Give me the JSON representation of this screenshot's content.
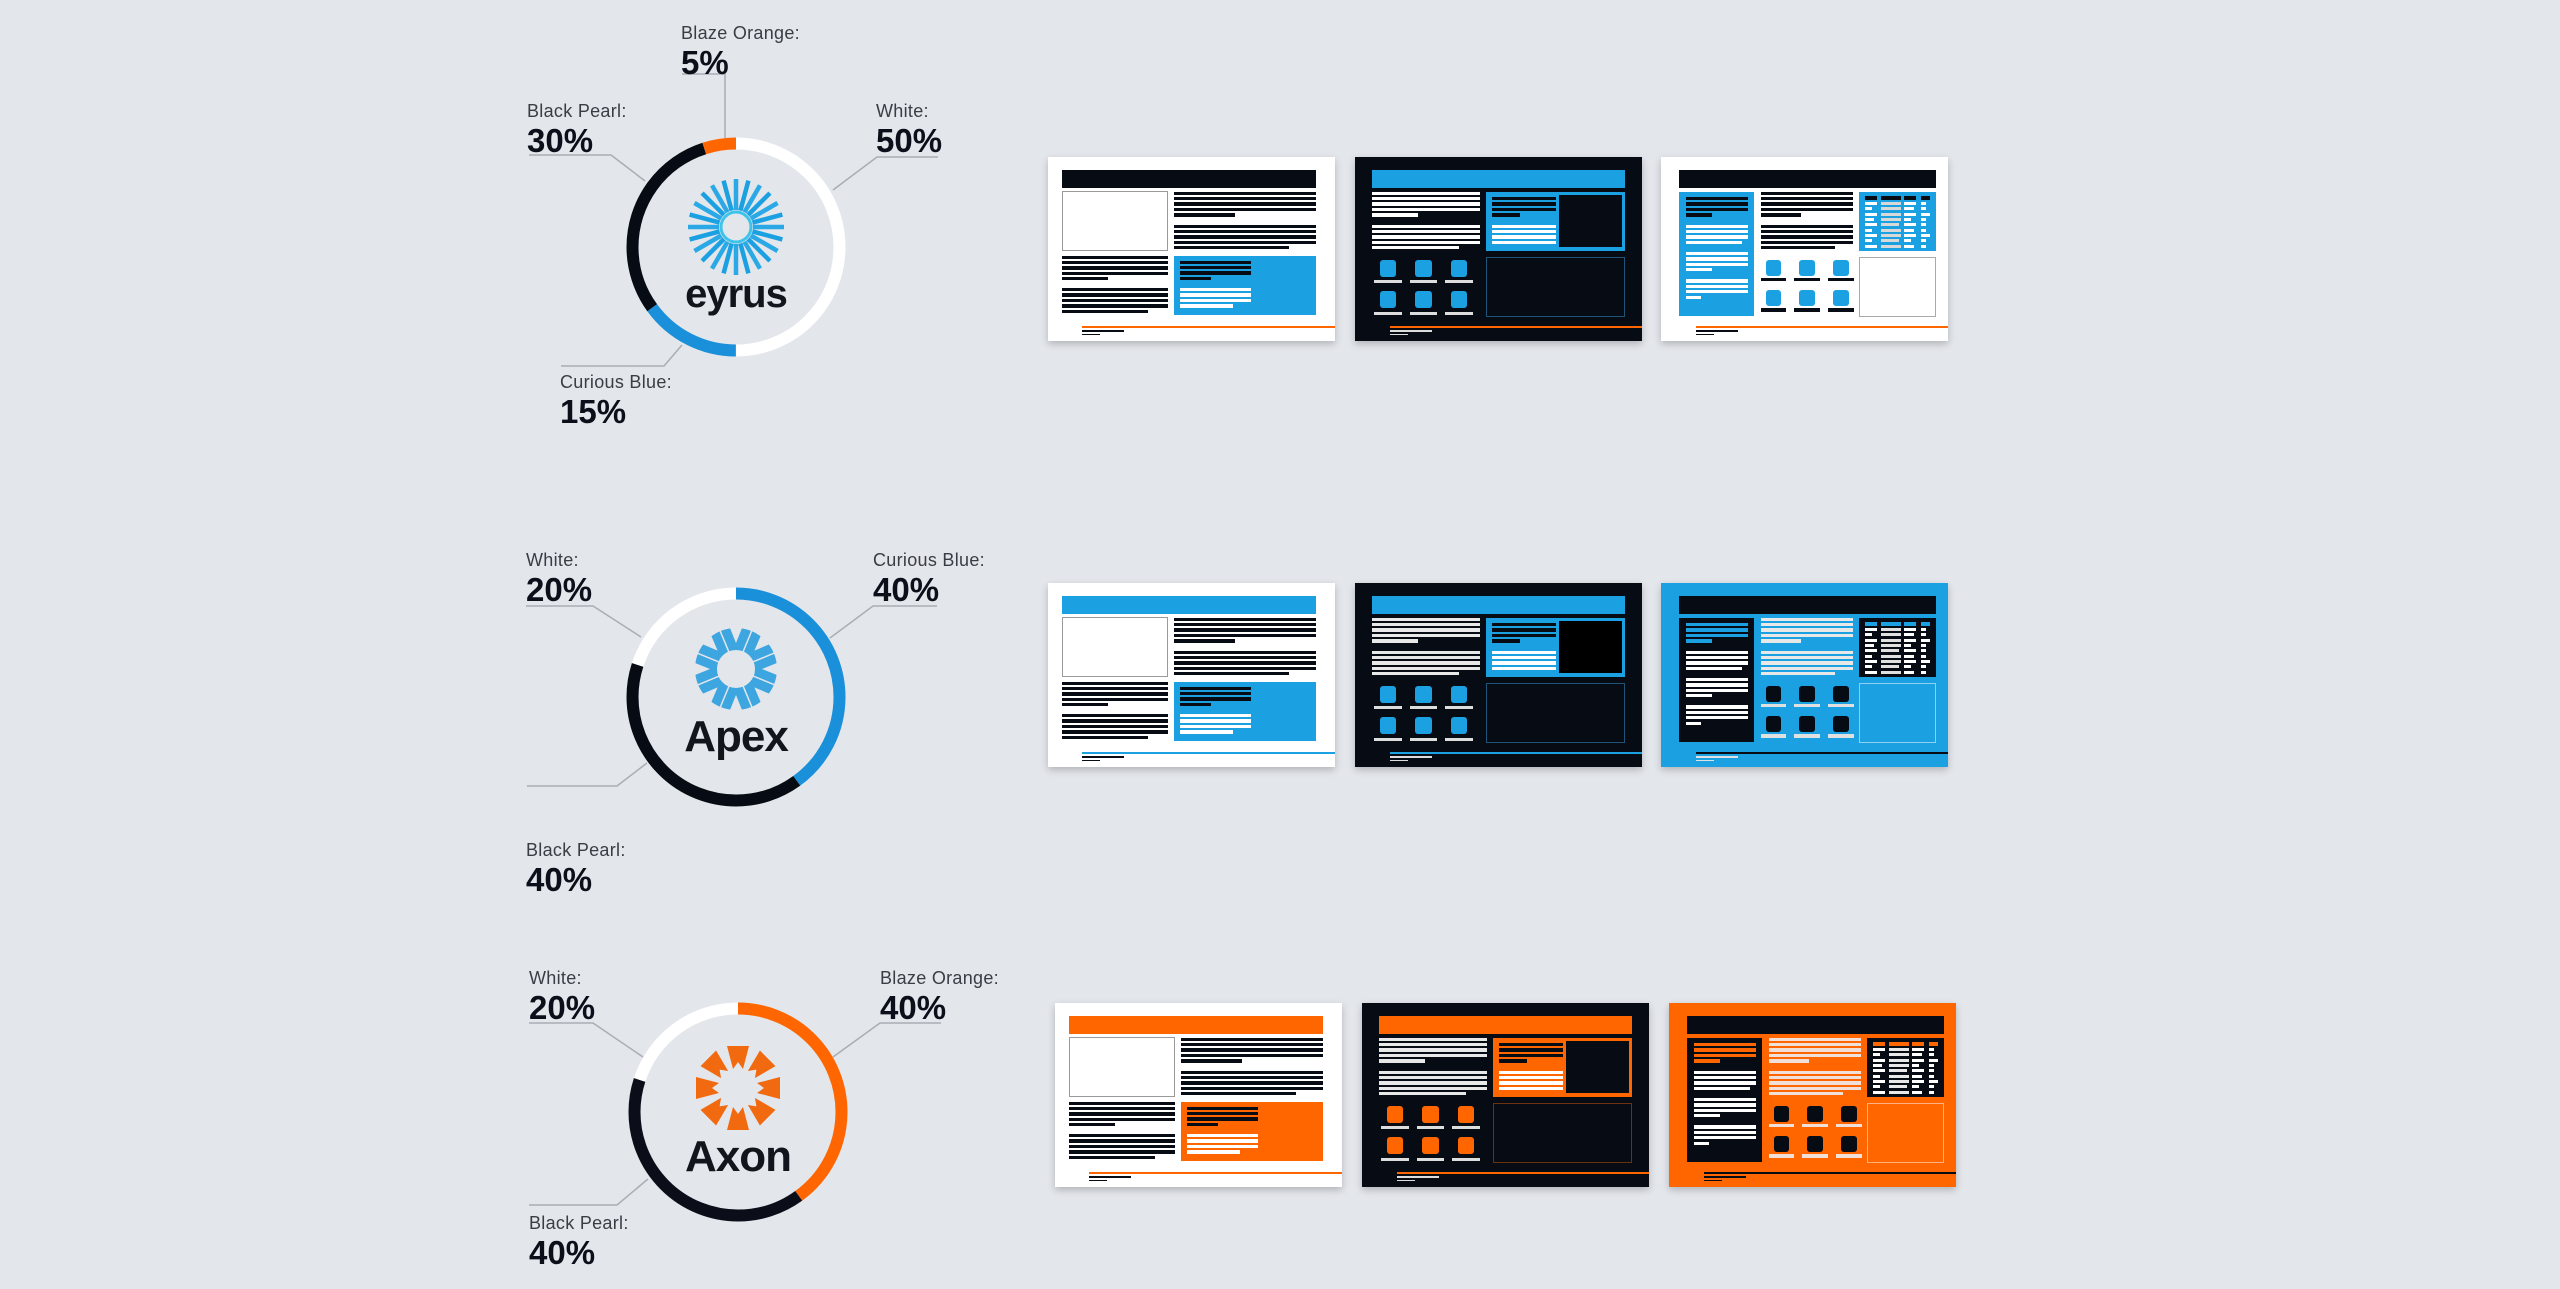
{
  "palette": {
    "black_pearl": "#060B14",
    "curious_blue": "#1BA1E2",
    "blaze_orange": "#FF6600",
    "white": "#FFFFFF",
    "background": "#E3E6EB"
  },
  "brands": [
    {
      "logo_text": "eyrus",
      "logo_icon": "sunburst-icon",
      "logo_color": "#1BA1E2",
      "segments": [
        {
          "label": "White:",
          "value": "50%",
          "percent": 50,
          "color": "#FFFFFF"
        },
        {
          "label": "Curious Blue:",
          "value": "15%",
          "percent": 15,
          "color": "#1B90DA"
        },
        {
          "label": "Black Pearl:",
          "value": "30%",
          "percent": 30,
          "color": "#060B14"
        },
        {
          "label": "Blaze Orange:",
          "value": "5%",
          "percent": 5,
          "color": "#FF6600"
        }
      ],
      "mockups": [
        {
          "variant": "A",
          "bg": "#FFFFFF",
          "header": "#060B14",
          "imgBox": "#FFFFFF",
          "imgBorder": "#9a9a9a",
          "lines": "#060B14",
          "accent": "#1BA1E2",
          "boxTop": "#060B14",
          "boxBottom": "#FFFFFF",
          "footer": "#FF6600",
          "footText": "#060B14"
        },
        {
          "variant": "B",
          "bg": "#060B14",
          "header": "#1BA1E2",
          "lines": "#FFFFFF",
          "accent": "#1BA1E2",
          "innerTop": "#060B14",
          "innerBottom": "#FFFFFF",
          "inner": "#060B14",
          "icon": "#1BA1E2",
          "label": "#DDDDDD",
          "box": "#060B14",
          "boxBorder": "#1d5478",
          "footer": "#FF6600",
          "footText": "#DDDDDD"
        },
        {
          "variant": "C",
          "bg": "#FFFFFF",
          "header": "#060B14",
          "col": "#1BA1E2",
          "colTop": "#060B14",
          "colLines": "#FFFFFF",
          "mid": "#060B14",
          "icon": "#1BA1E2",
          "label": "#060B14",
          "table": "#1BA1E2",
          "tableHead": "#060B14",
          "tableCells": "#FFFFFF",
          "tableCellsAlt": "#D8D8D8",
          "box": "#FFFFFF",
          "boxBorder": "#AAAAAA",
          "footer": "#FF6600",
          "footText": "#060B14"
        }
      ]
    },
    {
      "logo_text": "Apex",
      "logo_icon": "gear-burst-icon",
      "logo_color": "#3DA5E0",
      "segments": [
        {
          "label": "Curious Blue:",
          "value": "40%",
          "percent": 40,
          "color": "#1B90DA"
        },
        {
          "label": "Black Pearl:",
          "value": "40%",
          "percent": 40,
          "color": "#060B14"
        },
        {
          "label": "White:",
          "value": "20%",
          "percent": 20,
          "color": "#FFFFFF"
        }
      ],
      "mockups": [
        {
          "variant": "A",
          "bg": "#FFFFFF",
          "header": "#1BA1E2",
          "imgBox": "#FFFFFF",
          "imgBorder": "#9a9a9a",
          "lines": "#060B14",
          "accent": "#1BA1E2",
          "boxTop": "#060B14",
          "boxBottom": "#FFFFFF",
          "footer": "#1BA1E2",
          "footText": "#060B14"
        },
        {
          "variant": "B",
          "bg": "#060B14",
          "header": "#1BA1E2",
          "lines": "#E8E8E8",
          "accent": "#1BA1E2",
          "innerTop": "#060B14",
          "innerBottom": "#FFFFFF",
          "inner": "#000000",
          "icon": "#1BA1E2",
          "label": "#DDDDDD",
          "box": "#060B14",
          "boxBorder": "#1d5478",
          "footer": "#1BA1E2",
          "footText": "#DDDDDD"
        },
        {
          "variant": "C",
          "bg": "#1BA1E2",
          "header": "#060B14",
          "col": "#060B14",
          "colTop": "#1BA1E2",
          "colLines": "#FFFFFF",
          "mid": "#E8E8E8",
          "icon": "#060B14",
          "label": "#E0E0E0",
          "table": "#060B14",
          "tableHead": "#1BA1E2",
          "tableCells": "#FFFFFF",
          "tableCellsAlt": "#E0E0E0",
          "box": "#1BA1E2",
          "boxBorder": "#8fd0f0",
          "footer": "#060B14",
          "footText": "#E0E0E0"
        }
      ]
    },
    {
      "logo_text": "Axon",
      "logo_icon": "chevron-burst-icon",
      "logo_color": "#F26A10",
      "segments": [
        {
          "label": "Blaze Orange:",
          "value": "40%",
          "percent": 40,
          "color": "#FF6600"
        },
        {
          "label": "Black Pearl:",
          "value": "40%",
          "percent": 40,
          "color": "#0B0E19"
        },
        {
          "label": "White:",
          "value": "20%",
          "percent": 20,
          "color": "#FFFFFF"
        }
      ],
      "mockups": [
        {
          "variant": "A",
          "bg": "#FFFFFF",
          "header": "#FF6600",
          "imgBox": "#FFFFFF",
          "imgBorder": "#9a9a9a",
          "lines": "#060B14",
          "accent": "#FF6600",
          "boxTop": "#060B14",
          "boxBottom": "#FFFFFF",
          "footer": "#FF6600",
          "footText": "#060B14"
        },
        {
          "variant": "B",
          "bg": "#060B14",
          "header": "#FF6600",
          "lines": "#E8E8E8",
          "accent": "#FF6600",
          "innerTop": "#060B14",
          "innerBottom": "#FFFFFF",
          "inner": "#060B14",
          "icon": "#FF6600",
          "label": "#DDDDDD",
          "box": "#060B14",
          "boxBorder": "#6b3210",
          "footer": "#FF6600",
          "footText": "#DDDDDD"
        },
        {
          "variant": "C",
          "bg": "#FF6600",
          "header": "#060B14",
          "col": "#060B14",
          "colTop": "#FF6600",
          "colLines": "#FFFFFF",
          "mid": "#F0E0D8",
          "icon": "#060B14",
          "label": "#F0E0D8",
          "table": "#060B14",
          "tableHead": "#FF6600",
          "tableCells": "#FFFFFF",
          "tableCellsAlt": "#E8E8E8",
          "box": "#FF6600",
          "boxBorder": "#ffb27f",
          "footer": "#060B14",
          "footText": "#060B14"
        }
      ]
    }
  ]
}
